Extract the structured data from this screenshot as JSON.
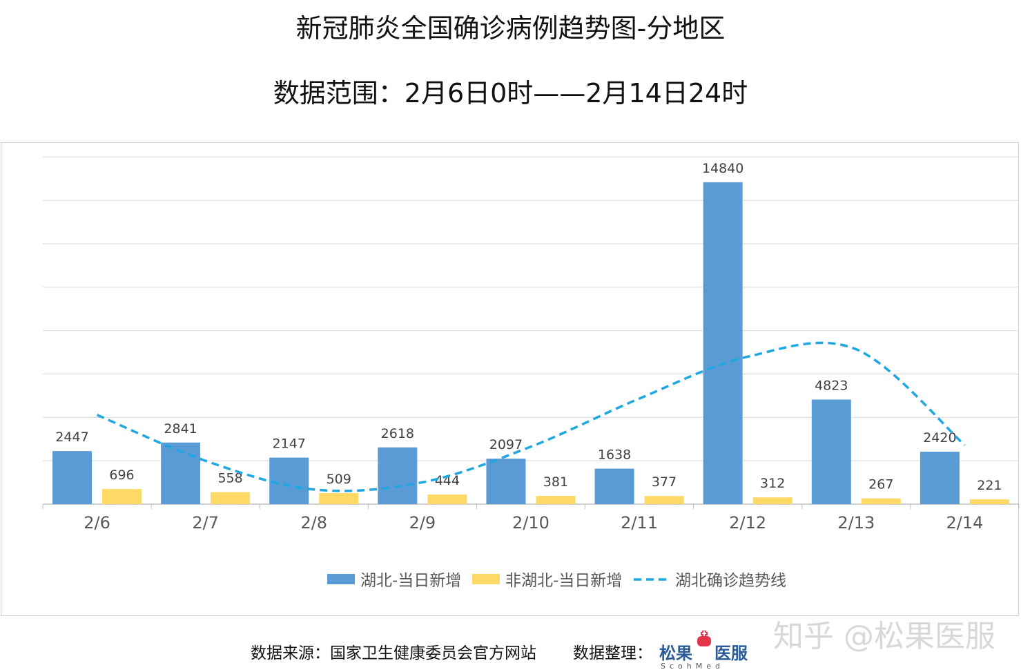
{
  "title": "新冠肺炎全国确诊病例趋势图-分地区",
  "subtitle": "数据范围：2月6日0时——2月14日24时",
  "chart_data": {
    "type": "bar",
    "categories": [
      "2/6",
      "2/7",
      "2/8",
      "2/9",
      "2/10",
      "2/11",
      "2/12",
      "2/13",
      "2/14"
    ],
    "series": [
      {
        "name": "湖北-当日新增",
        "color": "#5b9bd5",
        "values": [
          2447,
          2841,
          2147,
          2618,
          2097,
          1638,
          14840,
          4823,
          2420
        ]
      },
      {
        "name": "非湖北-当日新增",
        "color": "#ffd966",
        "values": [
          696,
          558,
          509,
          444,
          381,
          377,
          312,
          267,
          221
        ]
      }
    ],
    "trendline": {
      "name": "湖北确诊趋势线",
      "color": "#1ea7e0",
      "style": "dashed",
      "type": "polynomial",
      "values": [
        4115,
        2000,
        675,
        1008,
        2650,
        4868,
        6800,
        7138,
        2720
      ]
    },
    "ylim": [
      0,
      16300
    ],
    "grid": true,
    "data_labels": true,
    "legend_position": "bottom"
  },
  "footer": {
    "source": "数据来源：国家卫生健康委员会官方网站",
    "organizer_label": "数据整理：",
    "logo_text_left": "松果",
    "logo_text_right": "医服",
    "logo_sub": "ScohMed"
  },
  "watermark": "知乎 @松果医服"
}
